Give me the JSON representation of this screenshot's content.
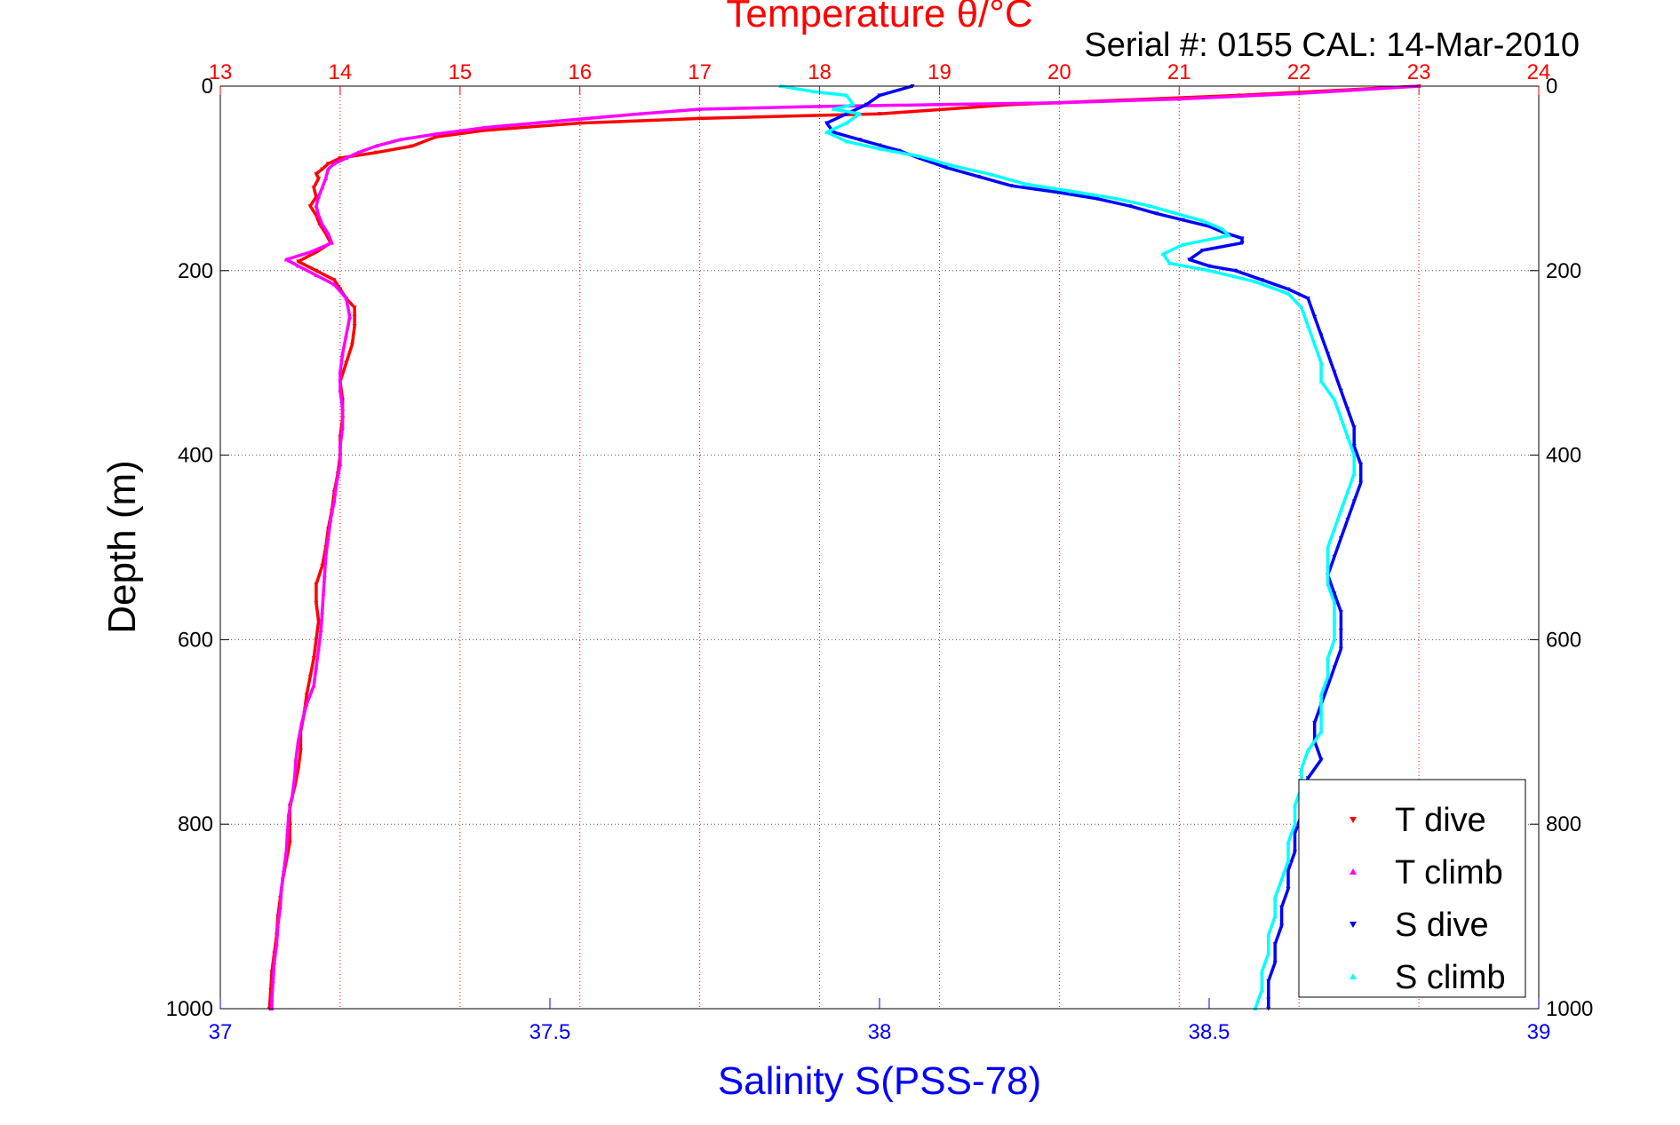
{
  "chart_data": {
    "type": "scatter",
    "title": "Temperature θ/°C",
    "subtitle": "Serial #: 0155  CAL: 14-Mar-2010",
    "ylabel": "Depth (m)",
    "xlabel": "Salinity S(PSS-78)",
    "top_axis": {
      "label": "Temperature θ/°C",
      "range": [
        13,
        24
      ],
      "ticks": [
        "13",
        "14",
        "15",
        "16",
        "17",
        "18",
        "19",
        "20",
        "21",
        "22",
        "23",
        "24"
      ],
      "color": "#ff0000"
    },
    "bottom_axis": {
      "label": "Salinity S(PSS-78)",
      "range": [
        37,
        39
      ],
      "ticks": [
        "37",
        "37.5",
        "38",
        "38.5",
        "39"
      ],
      "color": "#0000ff"
    },
    "y_axis": {
      "range": [
        0,
        1000
      ],
      "reversed": true,
      "ticks_left": [
        "0",
        "200",
        "400",
        "600",
        "800",
        "1000"
      ],
      "ticks_right": [
        "0",
        "200",
        "400",
        "600",
        "800",
        "1000"
      ]
    },
    "grid": {
      "vertical_temperature": true,
      "horizontal_depth": true
    },
    "legend": {
      "placement": "bottom-right",
      "entries": [
        "T dive",
        "T climb",
        "S dive",
        "S climb"
      ]
    },
    "series": [
      {
        "name": "T dive",
        "axis": "temperature",
        "color": "#ff0000",
        "marker": "triangle-down",
        "points": [
          [
            23.0,
            0
          ],
          [
            21.5,
            10
          ],
          [
            19.6,
            20
          ],
          [
            18.5,
            30
          ],
          [
            17.0,
            35
          ],
          [
            16.0,
            40
          ],
          [
            15.2,
            48
          ],
          [
            14.8,
            55
          ],
          [
            14.6,
            65
          ],
          [
            14.3,
            72
          ],
          [
            14.0,
            78
          ],
          [
            13.9,
            84
          ],
          [
            13.85,
            90
          ],
          [
            13.8,
            95
          ],
          [
            13.82,
            100
          ],
          [
            13.78,
            110
          ],
          [
            13.8,
            120
          ],
          [
            13.75,
            130
          ],
          [
            13.8,
            140
          ],
          [
            13.83,
            150
          ],
          [
            13.88,
            160
          ],
          [
            13.92,
            170
          ],
          [
            13.8,
            180
          ],
          [
            13.65,
            190
          ],
          [
            13.8,
            200
          ],
          [
            13.95,
            210
          ],
          [
            14.0,
            220
          ],
          [
            14.05,
            230
          ],
          [
            14.12,
            240
          ],
          [
            14.12,
            250
          ],
          [
            14.12,
            260
          ],
          [
            14.1,
            280
          ],
          [
            14.05,
            300
          ],
          [
            14.0,
            320
          ],
          [
            14.02,
            340
          ],
          [
            14.02,
            360
          ],
          [
            14.0,
            380
          ],
          [
            14.0,
            400
          ],
          [
            13.98,
            420
          ],
          [
            13.95,
            440
          ],
          [
            13.93,
            460
          ],
          [
            13.9,
            480
          ],
          [
            13.88,
            500
          ],
          [
            13.85,
            520
          ],
          [
            13.8,
            540
          ],
          [
            13.8,
            560
          ],
          [
            13.82,
            580
          ],
          [
            13.8,
            600
          ],
          [
            13.78,
            620
          ],
          [
            13.75,
            640
          ],
          [
            13.72,
            660
          ],
          [
            13.7,
            680
          ],
          [
            13.67,
            700
          ],
          [
            13.67,
            720
          ],
          [
            13.65,
            740
          ],
          [
            13.62,
            760
          ],
          [
            13.58,
            780
          ],
          [
            13.58,
            800
          ],
          [
            13.58,
            820
          ],
          [
            13.55,
            840
          ],
          [
            13.52,
            860
          ],
          [
            13.5,
            880
          ],
          [
            13.48,
            900
          ],
          [
            13.47,
            920
          ],
          [
            13.45,
            940
          ],
          [
            13.43,
            960
          ],
          [
            13.42,
            980
          ],
          [
            13.41,
            1000
          ]
        ]
      },
      {
        "name": "T climb",
        "axis": "temperature",
        "color": "#ff00ff",
        "marker": "triangle-up",
        "points": [
          [
            23.0,
            0
          ],
          [
            22.0,
            8
          ],
          [
            21.0,
            14
          ],
          [
            20.0,
            18
          ],
          [
            19.0,
            20
          ],
          [
            18.0,
            22
          ],
          [
            17.0,
            25
          ],
          [
            16.5,
            30
          ],
          [
            15.8,
            38
          ],
          [
            15.2,
            45
          ],
          [
            14.8,
            52
          ],
          [
            14.5,
            58
          ],
          [
            14.3,
            65
          ],
          [
            14.15,
            72
          ],
          [
            14.05,
            78
          ],
          [
            13.95,
            84
          ],
          [
            13.9,
            90
          ],
          [
            13.88,
            100
          ],
          [
            13.85,
            110
          ],
          [
            13.82,
            120
          ],
          [
            13.8,
            130
          ],
          [
            13.82,
            140
          ],
          [
            13.85,
            150
          ],
          [
            13.9,
            160
          ],
          [
            13.93,
            170
          ],
          [
            13.75,
            180
          ],
          [
            13.55,
            188
          ],
          [
            13.65,
            195
          ],
          [
            13.8,
            205
          ],
          [
            13.95,
            215
          ],
          [
            14.05,
            230
          ],
          [
            14.08,
            250
          ],
          [
            14.05,
            270
          ],
          [
            14.02,
            290
          ],
          [
            14.0,
            310
          ],
          [
            14.0,
            330
          ],
          [
            14.02,
            350
          ],
          [
            14.02,
            370
          ],
          [
            14.0,
            390
          ],
          [
            14.0,
            410
          ],
          [
            13.97,
            430
          ],
          [
            13.95,
            450
          ],
          [
            13.92,
            470
          ],
          [
            13.9,
            490
          ],
          [
            13.88,
            510
          ],
          [
            13.87,
            530
          ],
          [
            13.86,
            550
          ],
          [
            13.85,
            570
          ],
          [
            13.84,
            590
          ],
          [
            13.82,
            610
          ],
          [
            13.8,
            630
          ],
          [
            13.78,
            650
          ],
          [
            13.72,
            670
          ],
          [
            13.68,
            690
          ],
          [
            13.65,
            710
          ],
          [
            13.63,
            730
          ],
          [
            13.62,
            750
          ],
          [
            13.6,
            770
          ],
          [
            13.57,
            790
          ],
          [
            13.56,
            810
          ],
          [
            13.55,
            830
          ],
          [
            13.53,
            850
          ],
          [
            13.51,
            870
          ],
          [
            13.5,
            890
          ],
          [
            13.48,
            910
          ],
          [
            13.47,
            930
          ],
          [
            13.45,
            950
          ],
          [
            13.44,
            970
          ],
          [
            13.43,
            990
          ],
          [
            13.43,
            1000
          ]
        ]
      },
      {
        "name": "S dive",
        "axis": "salinity",
        "color": "#0000ff",
        "marker": "triangle-down",
        "points": [
          [
            38.05,
            0
          ],
          [
            38.0,
            10
          ],
          [
            37.98,
            20
          ],
          [
            37.95,
            30
          ],
          [
            37.92,
            40
          ],
          [
            37.93,
            50
          ],
          [
            37.97,
            58
          ],
          [
            38.0,
            64
          ],
          [
            38.03,
            70
          ],
          [
            38.06,
            78
          ],
          [
            38.1,
            88
          ],
          [
            38.15,
            98
          ],
          [
            38.2,
            108
          ],
          [
            38.27,
            115
          ],
          [
            38.33,
            122
          ],
          [
            38.38,
            130
          ],
          [
            38.42,
            138
          ],
          [
            38.46,
            145
          ],
          [
            38.5,
            152
          ],
          [
            38.52,
            158
          ],
          [
            38.55,
            165
          ],
          [
            38.55,
            170
          ],
          [
            38.49,
            178
          ],
          [
            38.47,
            188
          ],
          [
            38.5,
            195
          ],
          [
            38.54,
            200
          ],
          [
            38.58,
            210
          ],
          [
            38.62,
            220
          ],
          [
            38.65,
            230
          ],
          [
            38.66,
            250
          ],
          [
            38.67,
            270
          ],
          [
            38.68,
            290
          ],
          [
            38.69,
            310
          ],
          [
            38.7,
            330
          ],
          [
            38.71,
            350
          ],
          [
            38.72,
            370
          ],
          [
            38.72,
            390
          ],
          [
            38.73,
            410
          ],
          [
            38.73,
            430
          ],
          [
            38.72,
            450
          ],
          [
            38.71,
            470
          ],
          [
            38.7,
            490
          ],
          [
            38.69,
            510
          ],
          [
            38.68,
            530
          ],
          [
            38.69,
            550
          ],
          [
            38.7,
            570
          ],
          [
            38.7,
            590
          ],
          [
            38.7,
            610
          ],
          [
            38.69,
            630
          ],
          [
            38.68,
            650
          ],
          [
            38.67,
            670
          ],
          [
            38.66,
            690
          ],
          [
            38.66,
            710
          ],
          [
            38.67,
            730
          ],
          [
            38.65,
            750
          ],
          [
            38.64,
            770
          ],
          [
            38.64,
            790
          ],
          [
            38.63,
            810
          ],
          [
            38.63,
            830
          ],
          [
            38.62,
            850
          ],
          [
            38.62,
            870
          ],
          [
            38.61,
            890
          ],
          [
            38.61,
            910
          ],
          [
            38.6,
            930
          ],
          [
            38.6,
            950
          ],
          [
            38.59,
            970
          ],
          [
            38.59,
            990
          ],
          [
            38.59,
            1000
          ]
        ]
      },
      {
        "name": "S climb",
        "axis": "salinity",
        "color": "#00ffff",
        "marker": "triangle-up",
        "points": [
          [
            37.85,
            0
          ],
          [
            37.9,
            6
          ],
          [
            37.95,
            10
          ],
          [
            37.96,
            20
          ],
          [
            37.93,
            25
          ],
          [
            37.97,
            30
          ],
          [
            37.95,
            40
          ],
          [
            37.92,
            50
          ],
          [
            37.95,
            60
          ],
          [
            38.0,
            68
          ],
          [
            38.06,
            76
          ],
          [
            38.11,
            86
          ],
          [
            38.17,
            96
          ],
          [
            38.22,
            106
          ],
          [
            38.29,
            114
          ],
          [
            38.36,
            122
          ],
          [
            38.41,
            130
          ],
          [
            38.45,
            138
          ],
          [
            38.49,
            146
          ],
          [
            38.52,
            155
          ],
          [
            38.53,
            162
          ],
          [
            38.46,
            172
          ],
          [
            38.43,
            182
          ],
          [
            38.44,
            192
          ],
          [
            38.5,
            200
          ],
          [
            38.57,
            212
          ],
          [
            38.62,
            225
          ],
          [
            38.64,
            240
          ],
          [
            38.65,
            260
          ],
          [
            38.66,
            280
          ],
          [
            38.67,
            300
          ],
          [
            38.67,
            320
          ],
          [
            38.69,
            340
          ],
          [
            38.7,
            360
          ],
          [
            38.71,
            380
          ],
          [
            38.72,
            400
          ],
          [
            38.72,
            420
          ],
          [
            38.71,
            440
          ],
          [
            38.7,
            460
          ],
          [
            38.69,
            480
          ],
          [
            38.68,
            500
          ],
          [
            38.68,
            520
          ],
          [
            38.68,
            540
          ],
          [
            38.69,
            560
          ],
          [
            38.69,
            580
          ],
          [
            38.69,
            600
          ],
          [
            38.68,
            620
          ],
          [
            38.68,
            640
          ],
          [
            38.67,
            660
          ],
          [
            38.67,
            680
          ],
          [
            38.67,
            700
          ],
          [
            38.65,
            720
          ],
          [
            38.64,
            740
          ],
          [
            38.64,
            760
          ],
          [
            38.63,
            780
          ],
          [
            38.63,
            800
          ],
          [
            38.62,
            820
          ],
          [
            38.62,
            840
          ],
          [
            38.61,
            860
          ],
          [
            38.6,
            880
          ],
          [
            38.6,
            900
          ],
          [
            38.59,
            920
          ],
          [
            38.59,
            940
          ],
          [
            38.58,
            960
          ],
          [
            38.58,
            980
          ],
          [
            38.57,
            1000
          ]
        ]
      }
    ]
  }
}
